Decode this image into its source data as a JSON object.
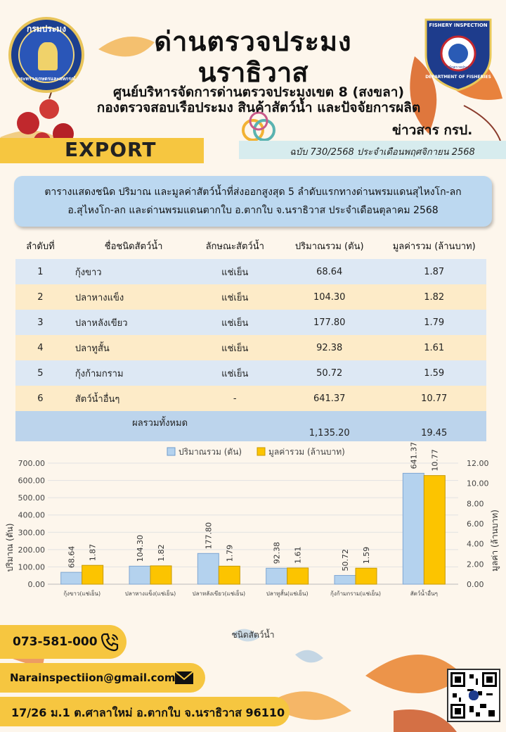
{
  "header": {
    "title_line1": "ด่านตรวจประมง",
    "title_line2": "นราธิวาส",
    "subtitle_line1": "ศูนย์บริหารจัดการด่านตรวจประมงเขต 8 (สงขลา)",
    "subtitle_line2": "กองตรวจสอบเรือประมง สินค้าสัตว์น้ำ และปัจจัยการผลิต",
    "left_logo_top": "กรมประมง",
    "left_logo_bottom": "กระทรวงเกษตรและสหกรณ์",
    "right_logo_top": "FISHERY INSPECTION",
    "right_logo_bottom": "DEPARTMENT OF FISHERIES",
    "right_logo_inner": "สำนักตรวจประมง",
    "export_label": "EXPORT",
    "news_label": "ข่าวสาร กรป.",
    "issue": "ฉบับ 730/2568 ประจำเดือนพฤศจิกายน  2568"
  },
  "caption": {
    "line1": "ตารางแสดงชนิด ปริมาณ และมูลค่าสัตว์น้ำที่ส่งออกสูงสุด 5 ลำดับแรกทางด่านพรมแดนสุไหงโก-ลก",
    "line2": "อ.สุไหงโก-ลก และด่านพรมแดนตากใบ  อ.ตากใบ  จ.นราธิวาส  ประจำเดือนตุลาคม  2568"
  },
  "table": {
    "headers": [
      "ลำดับที่",
      "ชื่อชนิดสัตว์น้ำ",
      "ลักษณะสัตว์น้ำ",
      "ปริมาณรวม (ตัน)",
      "มูลค่ารวม (ล้านบาท)"
    ],
    "rows": [
      {
        "rank": "1",
        "name": "กุ้งขาว",
        "char": "แช่เย็น",
        "qty": "68.64",
        "val": "1.87"
      },
      {
        "rank": "2",
        "name": "ปลาหางแข็ง",
        "char": "แช่เย็น",
        "qty": "104.30",
        "val": "1.82"
      },
      {
        "rank": "3",
        "name": "ปลาหลังเขียว",
        "char": "แช่เย็น",
        "qty": "177.80",
        "val": "1.79"
      },
      {
        "rank": "4",
        "name": "ปลาทูสั้น",
        "char": "แช่เย็น",
        "qty": "92.38",
        "val": "1.61"
      },
      {
        "rank": "5",
        "name": "กุ้งก้ามกราม",
        "char": "แช่เย็น",
        "qty": "50.72",
        "val": "1.59"
      },
      {
        "rank": "6",
        "name": "สัตว์น้ำอื่นๆ",
        "char": "-",
        "qty": "641.37",
        "val": "10.77"
      }
    ],
    "total_label": "ผลรวมทั้งหมด",
    "total_qty": "1,135.20",
    "total_val": "19.45"
  },
  "chart_data": {
    "type": "bar",
    "categories": [
      "กุ้งขาว(แช่เย็น)",
      "ปลาหางแข็ง(แช่เย็น)",
      "ปลาหลังเขียว(แช่เย็น)",
      "ปลาทูสั้น(แช่เย็น)",
      "กุ้งก้ามกราม(แช่เย็น)",
      "สัตว์น้ำอื่นๆ"
    ],
    "series": [
      {
        "name": "ปริมาณรวม (ตัน)",
        "values": [
          68.64,
          104.3,
          177.8,
          92.38,
          50.72,
          641.37
        ],
        "axis": "left",
        "color": "#b4d2ee"
      },
      {
        "name": "มูลค่ารวม (ล้านบาท)",
        "values": [
          1.87,
          1.82,
          1.79,
          1.61,
          1.59,
          10.77
        ],
        "axis": "right",
        "color": "#fcc400"
      }
    ],
    "value_labels_left": [
      "68.64",
      "104.30",
      "177.80",
      "92.38",
      "50.72",
      "641.37"
    ],
    "value_labels_right": [
      "1.87",
      "1.82",
      "1.79",
      "1.61",
      "1.59",
      "10.77"
    ],
    "xlabel": "ชนิดสัตว์น้ำ",
    "ylabel": "ปริมาณ (ตัน)",
    "y2label": "มูลค่า (ล้านบาท)",
    "ylim": [
      0,
      700
    ],
    "y2lim": [
      0,
      12
    ],
    "yticks": [
      "0.00",
      "100.00",
      "200.00",
      "300.00",
      "400.00",
      "500.00",
      "600.00",
      "700.00"
    ],
    "y2ticks": [
      "0.00",
      "2.00",
      "4.00",
      "6.00",
      "8.00",
      "10.00",
      "12.00"
    ],
    "legend_position": "top"
  },
  "footer": {
    "phone": "073-581-000",
    "email": "Narainspectiion@gmail.com",
    "address": "17/26 ม.1 ต.ศาลาใหม่ อ.ตากใบ จ.นราธิวาส 96110"
  }
}
